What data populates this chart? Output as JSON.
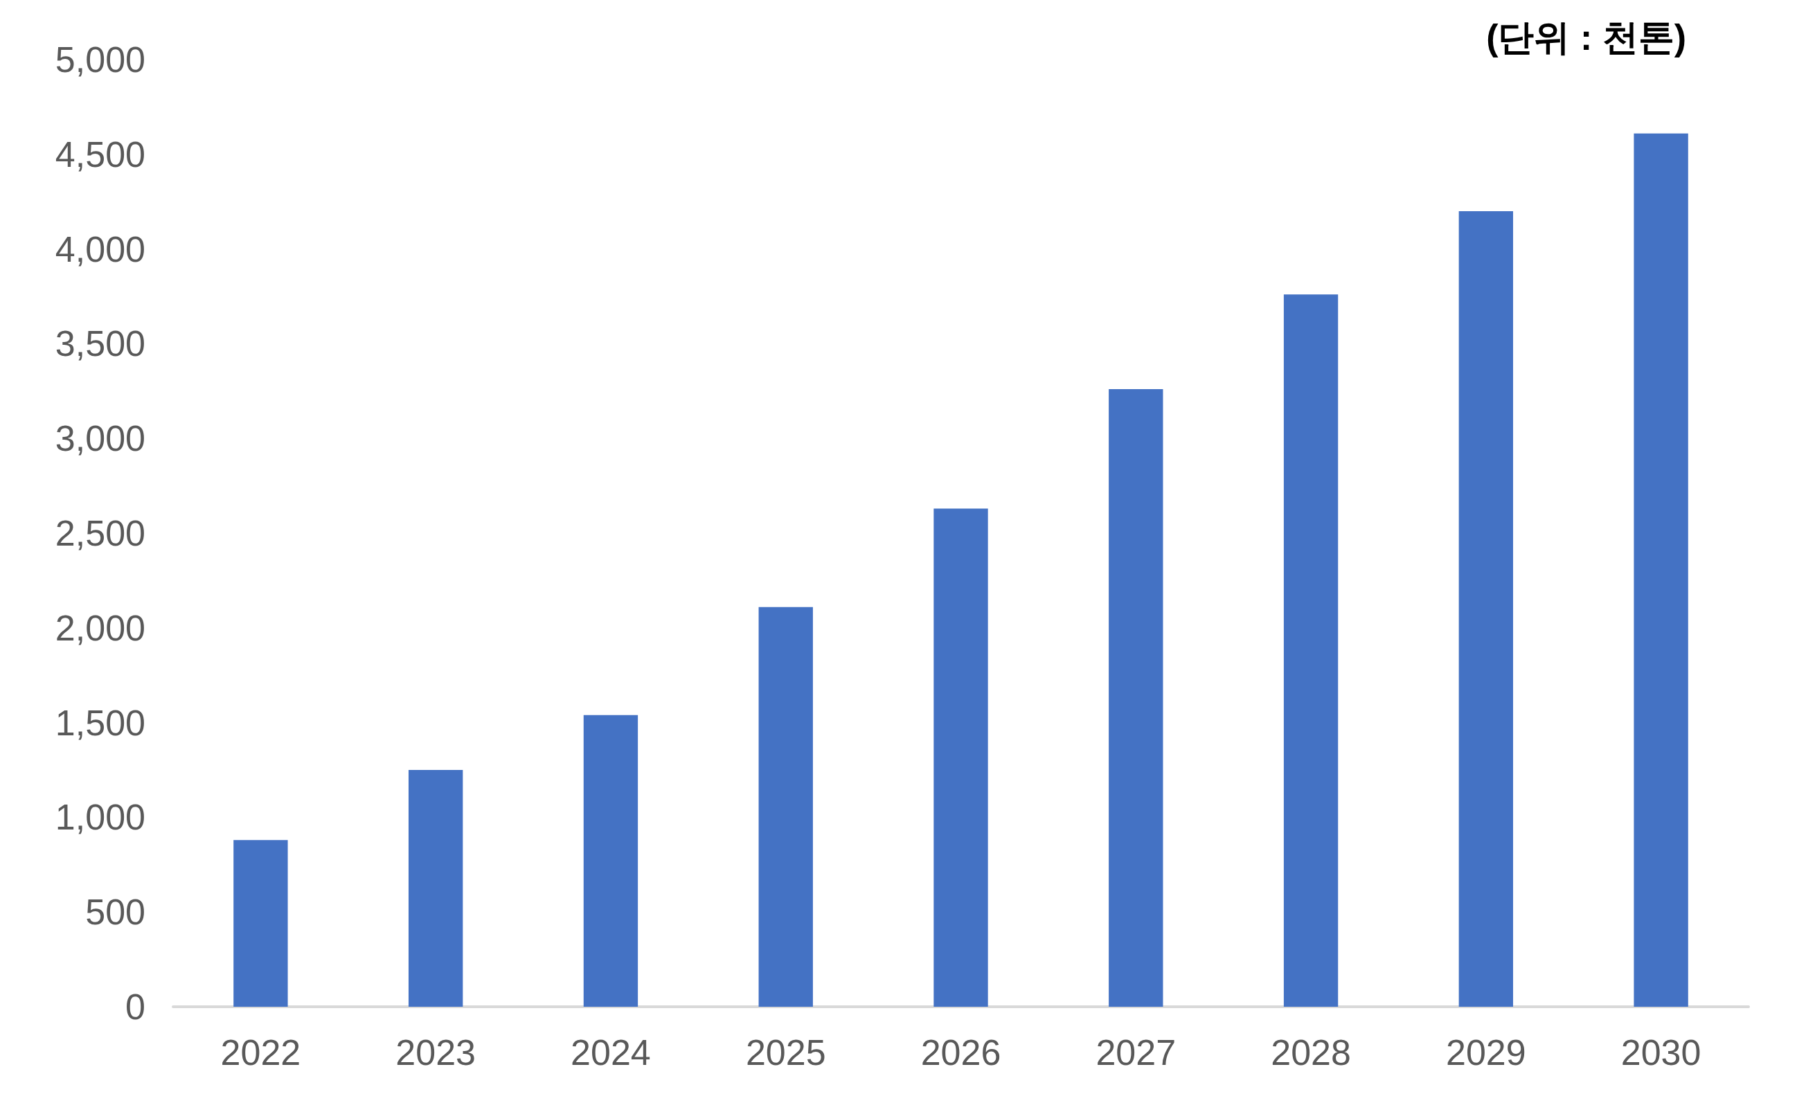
{
  "chart_data": {
    "type": "bar",
    "annotations": [
      "(단위 : 천톤)"
    ],
    "categories": [
      "2022",
      "2023",
      "2024",
      "2025",
      "2026",
      "2027",
      "2028",
      "2029",
      "2030"
    ],
    "values": [
      880,
      1250,
      1540,
      2110,
      2630,
      3260,
      3760,
      4200,
      4610
    ],
    "color": "#4472c4",
    "ylim": [
      0,
      5000
    ],
    "yticks": [
      0,
      500,
      {
        "value": 1000,
        "label": "1,000"
      },
      {
        "value": 1500,
        "label": "1,500"
      },
      {
        "value": 2000,
        "label": "2,000"
      },
      {
        "value": 2500,
        "label": "2,500"
      },
      {
        "value": 3000,
        "label": "3,000"
      },
      {
        "value": 3500,
        "label": "3,500"
      },
      {
        "value": 4000,
        "label": "4,000"
      },
      {
        "value": 4500,
        "label": "4,500"
      },
      {
        "value": 5000,
        "label": "5,000"
      }
    ],
    "grid": false
  }
}
